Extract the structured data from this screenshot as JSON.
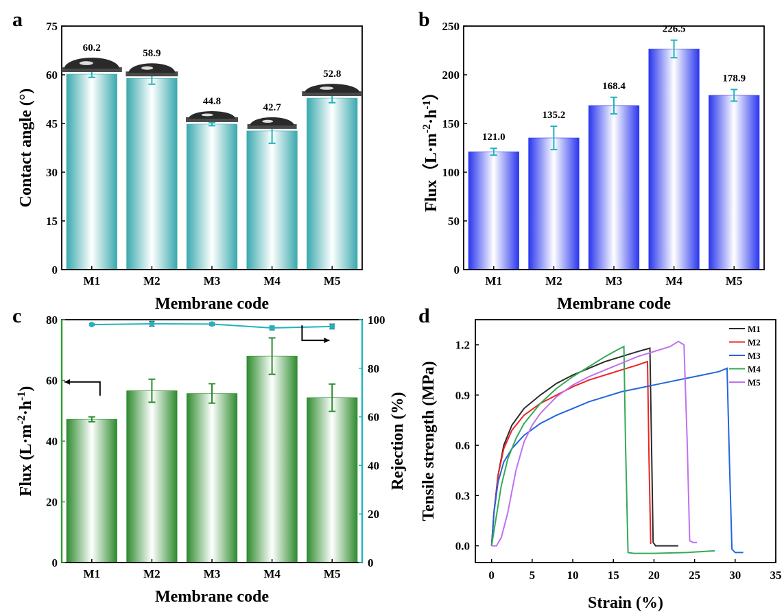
{
  "chart_data": [
    {
      "panel_label": "a",
      "type": "bar",
      "categories": [
        "M1",
        "M2",
        "M3",
        "M4",
        "M5"
      ],
      "values": [
        60.2,
        58.9,
        44.8,
        42.7,
        52.8
      ],
      "errors": [
        1.0,
        1.8,
        0.5,
        3.8,
        1.4
      ],
      "data_labels": [
        "60.2",
        "58.9",
        "44.8",
        "42.7",
        "52.8"
      ],
      "xlabel": "Membrane code",
      "ylabel": "Contact angle (°)",
      "ylim": [
        0,
        75
      ],
      "yticks": [
        "0",
        "15",
        "30",
        "45",
        "60",
        "75"
      ],
      "colors": {
        "bar": "#3aa9ae",
        "bar_light": "#ffffff",
        "error": "#1fb3bd"
      },
      "grid": false
    },
    {
      "panel_label": "b",
      "type": "bar",
      "categories": [
        "M1",
        "M2",
        "M3",
        "M4",
        "M5"
      ],
      "values": [
        121.0,
        135.2,
        168.4,
        226.5,
        178.9
      ],
      "errors": [
        3.5,
        12.0,
        8.5,
        9.0,
        6.0
      ],
      "data_labels": [
        "121.0",
        "135.2",
        "168.4",
        "226.5",
        "178.9"
      ],
      "xlabel": "Membrane code",
      "ylabel_main": "Flux（L·m",
      "ylabel_sup1": "-2",
      "ylabel_mid": "·h",
      "ylabel_sup2": "-1",
      "ylabel_end": "）",
      "ylim": [
        0,
        250
      ],
      "yticks": [
        "0",
        "50",
        "100",
        "150",
        "200",
        "250"
      ],
      "colors": {
        "bar": "#2a36ee",
        "bar_light": "#ffffff",
        "error": "#1fb3bd"
      },
      "grid": false
    },
    {
      "panel_label": "c",
      "type": "bar",
      "categories": [
        "M1",
        "M2",
        "M3",
        "M4",
        "M5"
      ],
      "values": [
        47.2,
        56.6,
        55.7,
        68.0,
        54.3
      ],
      "errors": [
        0.8,
        3.8,
        3.2,
        6.0,
        4.5
      ],
      "rejection": [
        98.0,
        98.3,
        98.2,
        96.6,
        97.2
      ],
      "rejection_errors": [
        0.4,
        1.0,
        0.5,
        0.8,
        1.0
      ],
      "xlabel": "Membrane code",
      "ylabel_main": "Flux (L·m",
      "ylabel_sup1": "-2",
      "ylabel_mid": "·h",
      "ylabel_sup2": "-1",
      "ylabel_end": ")",
      "y2label": "Rejection (%)",
      "ylim": [
        0,
        80
      ],
      "y2lim": [
        0,
        100
      ],
      "yticks": [
        "0",
        "20",
        "40",
        "60",
        "80"
      ],
      "y2ticks": [
        "0",
        "20",
        "40",
        "60",
        "80",
        "100"
      ],
      "colors": {
        "bar": "#2e8b2e",
        "bar_light": "#ffffff",
        "error": "#2e8b2e",
        "axis_left": "#2e9b2e",
        "axis_right": "#1fb3bd",
        "line": "#1fb3bd"
      },
      "grid": false
    },
    {
      "panel_label": "d",
      "type": "line",
      "xlabel": "Strain (%)",
      "ylabel": "Tensile strength (MPa)",
      "xlim": [
        -2,
        35
      ],
      "ylim": [
        -0.1,
        1.35
      ],
      "xticks": [
        "0",
        "5",
        "10",
        "15",
        "20",
        "25",
        "30",
        "35"
      ],
      "yticks": [
        "0.0",
        "0.3",
        "0.6",
        "0.9",
        "1.2"
      ],
      "legend_position": "top-right",
      "series": [
        {
          "name": "M1",
          "color": "#2b2b2b",
          "x": [
            0,
            0.3,
            0.8,
            1.5,
            2.5,
            4,
            6,
            8,
            10,
            12,
            14,
            16,
            18,
            19.5,
            19.7,
            19.9,
            20.2,
            21,
            22,
            23
          ],
          "y": [
            0,
            0.2,
            0.42,
            0.6,
            0.72,
            0.82,
            0.9,
            0.97,
            1.02,
            1.06,
            1.1,
            1.13,
            1.16,
            1.18,
            0.6,
            0.02,
            0.0,
            0.0,
            0.0,
            0.0
          ]
        },
        {
          "name": "M2",
          "color": "#ee2222",
          "x": [
            0,
            0.3,
            0.8,
            1.5,
            2.5,
            4,
            6,
            8,
            10,
            12,
            14,
            16,
            18,
            19.2,
            19.4,
            19.6
          ],
          "y": [
            0,
            0.2,
            0.42,
            0.58,
            0.69,
            0.78,
            0.85,
            0.9,
            0.95,
            0.99,
            1.02,
            1.05,
            1.08,
            1.1,
            0.5,
            0.01
          ]
        },
        {
          "name": "M3",
          "color": "#2266dd",
          "x": [
            0,
            0.3,
            0.8,
            1.5,
            2.5,
            4,
            6,
            8,
            10,
            12,
            14,
            16,
            18,
            20,
            22,
            24,
            26,
            28,
            29,
            29.3,
            29.6,
            30,
            31
          ],
          "y": [
            0,
            0.2,
            0.38,
            0.5,
            0.58,
            0.66,
            0.73,
            0.78,
            0.82,
            0.86,
            0.89,
            0.92,
            0.94,
            0.96,
            0.98,
            1.0,
            1.02,
            1.04,
            1.06,
            0.5,
            -0.02,
            -0.04,
            -0.04
          ]
        },
        {
          "name": "M4",
          "color": "#33aa55",
          "x": [
            0,
            0.5,
            1.2,
            2,
            3,
            4,
            6,
            8,
            10,
            12,
            14,
            15.5,
            16.3,
            16.5,
            16.8,
            17.5,
            20,
            24,
            27.5
          ],
          "y": [
            0,
            0.15,
            0.36,
            0.52,
            0.64,
            0.73,
            0.85,
            0.94,
            1.01,
            1.07,
            1.13,
            1.17,
            1.19,
            0.6,
            -0.04,
            -0.045,
            -0.045,
            -0.04,
            -0.03
          ]
        },
        {
          "name": "M5",
          "color": "#c070f0",
          "x": [
            0,
            0.6,
            1.2,
            2,
            3,
            4,
            5,
            6,
            8,
            10,
            12,
            14,
            16,
            18,
            20,
            22,
            23,
            23.7,
            24.1,
            24.4,
            24.8,
            25.3
          ],
          "y": [
            0,
            0.0,
            0.05,
            0.2,
            0.45,
            0.62,
            0.72,
            0.79,
            0.89,
            0.96,
            1.01,
            1.05,
            1.09,
            1.13,
            1.16,
            1.19,
            1.22,
            1.2,
            0.6,
            0.03,
            0.02,
            0.02
          ]
        }
      ]
    }
  ]
}
